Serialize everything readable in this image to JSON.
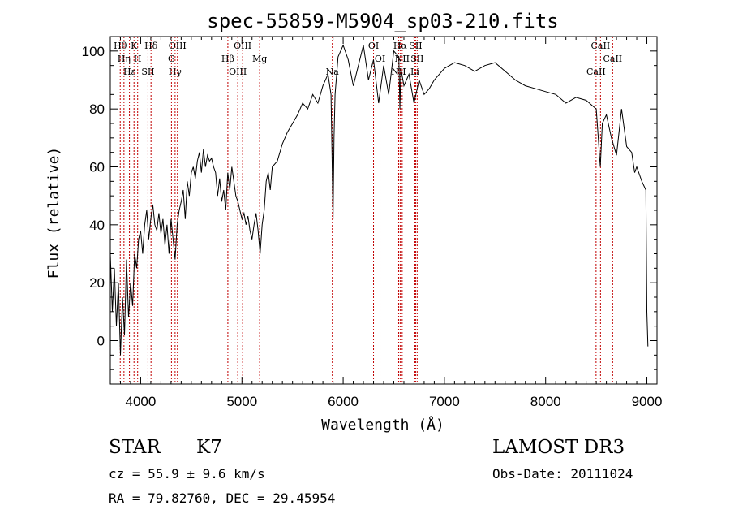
{
  "chart_data": {
    "type": "line",
    "title": "spec-55859-M5904_sp03-210.fits",
    "xlabel": "Wavelength (Å)",
    "ylabel": "Flux (relative)",
    "xlim": [
      3700,
      9100
    ],
    "ylim": [
      -15,
      105
    ],
    "xticks": [
      4000,
      5000,
      6000,
      7000,
      8000,
      9000
    ],
    "yticks": [
      0,
      20,
      40,
      60,
      80,
      100
    ],
    "series": [
      {
        "name": "spectrum",
        "x": [
          3700,
          3720,
          3740,
          3760,
          3780,
          3800,
          3820,
          3840,
          3860,
          3880,
          3900,
          3920,
          3940,
          3960,
          3980,
          4000,
          4020,
          4040,
          4060,
          4080,
          4100,
          4120,
          4140,
          4160,
          4180,
          4200,
          4220,
          4240,
          4260,
          4280,
          4300,
          4320,
          4340,
          4360,
          4380,
          4400,
          4420,
          4440,
          4460,
          4480,
          4500,
          4520,
          4540,
          4560,
          4580,
          4600,
          4620,
          4640,
          4660,
          4680,
          4700,
          4720,
          4740,
          4760,
          4780,
          4800,
          4820,
          4840,
          4860,
          4880,
          4900,
          4920,
          4940,
          4960,
          4980,
          5000,
          5020,
          5040,
          5060,
          5080,
          5100,
          5120,
          5140,
          5160,
          5180,
          5200,
          5220,
          5240,
          5260,
          5280,
          5300,
          5350,
          5400,
          5450,
          5500,
          5550,
          5600,
          5650,
          5700,
          5750,
          5800,
          5850,
          5880,
          5890,
          5900,
          5910,
          5920,
          5950,
          6000,
          6050,
          6100,
          6150,
          6200,
          6250,
          6300,
          6350,
          6400,
          6450,
          6500,
          6550,
          6560,
          6570,
          6600,
          6650,
          6700,
          6750,
          6800,
          6850,
          6900,
          6950,
          7000,
          7100,
          7200,
          7300,
          7400,
          7500,
          7600,
          7700,
          7800,
          7900,
          8000,
          8100,
          8200,
          8300,
          8400,
          8500,
          8540,
          8560,
          8600,
          8650,
          8700,
          8750,
          8800,
          8850,
          8880,
          8900,
          8950,
          8990,
          9000,
          9010
        ],
        "values": [
          30,
          10,
          25,
          5,
          20,
          -5,
          15,
          2,
          28,
          8,
          20,
          12,
          30,
          25,
          35,
          38,
          30,
          40,
          45,
          35,
          42,
          47,
          40,
          38,
          44,
          37,
          42,
          33,
          40,
          30,
          42,
          35,
          28,
          40,
          45,
          48,
          52,
          42,
          55,
          50,
          58,
          60,
          56,
          62,
          65,
          58,
          66,
          60,
          64,
          62,
          63,
          60,
          58,
          50,
          56,
          48,
          52,
          45,
          58,
          52,
          60,
          55,
          50,
          48,
          45,
          42,
          44,
          40,
          43,
          38,
          35,
          40,
          44,
          38,
          30,
          40,
          45,
          55,
          58,
          52,
          60,
          62,
          68,
          72,
          75,
          78,
          82,
          80,
          85,
          82,
          88,
          92,
          85,
          65,
          42,
          70,
          85,
          98,
          102,
          97,
          88,
          95,
          102,
          90,
          97,
          82,
          95,
          85,
          100,
          98,
          80,
          94,
          88,
          92,
          82,
          90,
          85,
          87,
          90,
          92,
          94,
          96,
          95,
          93,
          95,
          96,
          93,
          90,
          88,
          87,
          86,
          85,
          82,
          84,
          83,
          80,
          60,
          75,
          78,
          70,
          64,
          80,
          67,
          65,
          58,
          60,
          55,
          52,
          10,
          -2
        ]
      }
    ],
    "lines": [
      {
        "label": "Hθ",
        "x": 3798
      },
      {
        "label": "Hη",
        "x": 3835
      },
      {
        "label": "Hε",
        "x": 3889
      },
      {
        "label": "K",
        "x": 3934
      },
      {
        "label": "H",
        "x": 3970
      },
      {
        "label": "SII",
        "x": 4072
      },
      {
        "label": "Hδ",
        "x": 4102
      },
      {
        "label": "G",
        "x": 4304
      },
      {
        "label": "Hγ",
        "x": 4340
      },
      {
        "label": "OIII",
        "x": 4363
      },
      {
        "label": "Hβ",
        "x": 4861
      },
      {
        "label": "OIII",
        "x": 4959
      },
      {
        "label": "OIII",
        "x": 5007
      },
      {
        "label": "Mg",
        "x": 5175
      },
      {
        "label": "Na",
        "x": 5893
      },
      {
        "label": "OI",
        "x": 6300
      },
      {
        "label": "OI",
        "x": 6364
      },
      {
        "label": "NII",
        "x": 6548
      },
      {
        "label": "Hα",
        "x": 6563
      },
      {
        "label": "NII",
        "x": 6583
      },
      {
        "label": "Li",
        "x": 6708
      },
      {
        "label": "SII",
        "x": 6716
      },
      {
        "label": "SII",
        "x": 6731
      },
      {
        "label": "CaII",
        "x": 8498
      },
      {
        "label": "CaII",
        "x": 8542
      },
      {
        "label": "CaII",
        "x": 8662
      }
    ]
  },
  "info": {
    "class": "STAR",
    "subclass": "K7",
    "survey": "LAMOST DR3",
    "cz": "cz = 55.9 ± 9.6 km/s",
    "obs_date": "Obs-Date: 20111024",
    "coords": "RA =  79.82760, DEC =  29.45954"
  }
}
